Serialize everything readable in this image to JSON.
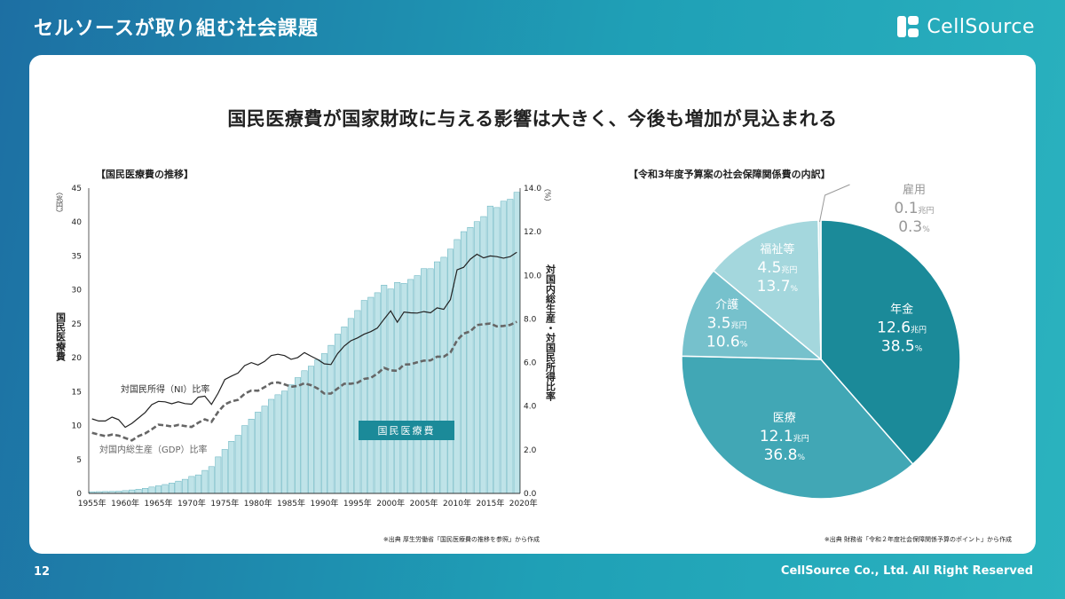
{
  "slide": {
    "title": "セルソースが取り組む社会課題",
    "brand": "CellSource",
    "headline": "国民医療費が国家財政に与える影響は大きく、今後も増加が見込まれる",
    "page_number": "12",
    "copyright": "CellSource Co., Ltd. All Right Reserved",
    "bg_color": "#1d8fb0"
  },
  "chart_data": [
    {
      "type": "bar",
      "title": "【国民医療費の推移】",
      "ylabel": "国民医療費",
      "y_unit": "（兆円）",
      "y2label": "対国内総生産・対国民所得比率",
      "y2_unit": "（%）",
      "ylim": [
        0,
        45
      ],
      "y2lim": [
        0,
        14
      ],
      "yticks": [
        "0",
        "5",
        "10",
        "15",
        "20",
        "25",
        "30",
        "35",
        "40",
        "45"
      ],
      "y2ticks": [
        "0.0",
        "2.0",
        "4.0",
        "6.0",
        "8.0",
        "10.0",
        "12.0",
        "14.0"
      ],
      "xticks": [
        "1955年",
        "1960年",
        "1965年",
        "1970年",
        "1975年",
        "1980年",
        "1985年",
        "1990年",
        "1995年",
        "2000年",
        "2005年",
        "2010年",
        "2015年",
        "2020年"
      ],
      "x_start": 1955,
      "bar_color": "#bfe3e8",
      "series": [
        {
          "name": "国民医療費",
          "kind": "bar",
          "values": [
            0.24,
            0.26,
            0.28,
            0.29,
            0.32,
            0.41,
            0.51,
            0.61,
            0.75,
            0.94,
            1.12,
            1.31,
            1.52,
            1.81,
            2.08,
            2.5,
            2.73,
            3.39,
            3.95,
            5.38,
            6.48,
            7.68,
            8.57,
            10.0,
            10.95,
            11.98,
            12.87,
            13.87,
            14.54,
            15.09,
            16.02,
            17.07,
            18.08,
            18.76,
            19.73,
            20.61,
            21.83,
            23.48,
            24.54,
            25.79,
            26.96,
            28.45,
            28.91,
            29.58,
            30.7,
            30.14,
            31.1,
            30.95,
            31.54,
            32.11,
            33.13,
            33.12,
            34.14,
            34.81,
            36.01,
            37.42,
            38.59,
            39.21,
            40.06,
            40.81,
            42.36,
            42.14,
            43.07,
            43.36,
            44.39
          ],
          "color": "#bfe3e8"
        },
        {
          "name": "対国民所得（NI）比率",
          "kind": "line",
          "values": [
            3.42,
            3.32,
            3.32,
            3.5,
            3.38,
            3.03,
            3.21,
            3.46,
            3.71,
            4.07,
            4.22,
            4.2,
            4.11,
            4.2,
            4.12,
            4.09,
            4.41,
            4.46,
            4.08,
            4.6,
            5.22,
            5.38,
            5.52,
            5.86,
            6.0,
            5.89,
            6.05,
            6.32,
            6.38,
            6.32,
            6.15,
            6.23,
            6.46,
            6.29,
            6.14,
            5.94,
            5.91,
            6.41,
            6.76,
            7.0,
            7.13,
            7.3,
            7.42,
            7.58,
            7.99,
            8.37,
            7.85,
            8.32,
            8.28,
            8.27,
            8.34,
            8.28,
            8.51,
            8.44,
            8.89,
            10.25,
            10.37,
            10.74,
            10.97,
            10.8,
            10.89,
            10.86,
            10.79,
            10.86,
            11.06
          ],
          "color": "#222222"
        },
        {
          "name": "対国内総生産（GDP）比率",
          "kind": "line",
          "values": [
            2.78,
            2.7,
            2.63,
            2.7,
            2.65,
            2.54,
            2.43,
            2.63,
            2.75,
            2.94,
            3.15,
            3.12,
            3.07,
            3.14,
            3.09,
            3.05,
            3.24,
            3.4,
            3.28,
            3.74,
            4.08,
            4.22,
            4.29,
            4.57,
            4.72,
            4.71,
            4.87,
            5.06,
            5.09,
            5.0,
            4.89,
            4.93,
            5.05,
            4.96,
            4.81,
            4.58,
            4.58,
            4.81,
            5.03,
            5.03,
            5.08,
            5.25,
            5.3,
            5.49,
            5.76,
            5.64,
            5.62,
            5.91,
            5.92,
            6.01,
            6.09,
            6.1,
            6.27,
            6.27,
            6.46,
            7.02,
            7.33,
            7.43,
            7.72,
            7.76,
            7.79,
            7.66,
            7.68,
            7.73,
            7.87
          ],
          "color": "#666666"
        }
      ],
      "annotations": [
        "対国民所得（NI）比率",
        "対国内総生産（GDP）比率",
        "国民医療費"
      ],
      "source": "※出典 厚生労働省「国民医療費の推移を参照」から作成"
    },
    {
      "type": "pie",
      "title": "【令和3年度予算案の社会保障関係費の内訳】",
      "unit": "兆円",
      "slices": [
        {
          "label": "年金",
          "value": 12.6,
          "percent": 38.5,
          "value_text": "12.6",
          "percent_text": "38.5",
          "color": "#1b8a99"
        },
        {
          "label": "医療",
          "value": 12.1,
          "percent": 36.8,
          "value_text": "12.1",
          "percent_text": "36.8",
          "color": "#41a7b5"
        },
        {
          "label": "介護",
          "value": 3.5,
          "percent": 10.6,
          "value_text": "3.5",
          "percent_text": "10.6",
          "color": "#76c1cc"
        },
        {
          "label": "福祉等",
          "value": 4.5,
          "percent": 13.7,
          "value_text": "4.5",
          "percent_text": "13.7",
          "color": "#a4d7dd"
        },
        {
          "label": "雇用",
          "value": 0.1,
          "percent": 0.3,
          "value_text": "0.1",
          "percent_text": "0.3",
          "color": "#d4ebee"
        }
      ],
      "source": "※出典 財務省「令和２年度社会保障関係予算のポイント」から作成"
    }
  ]
}
